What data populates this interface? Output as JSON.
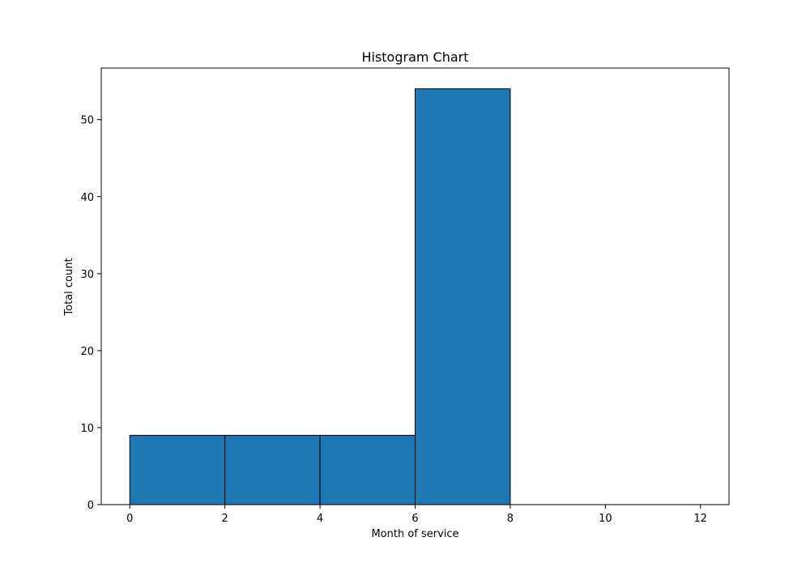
{
  "chart_data": {
    "type": "bar",
    "title": "Histogram Chart",
    "xlabel": "Month of service",
    "ylabel": "Total count",
    "bins": [
      {
        "x0": 0,
        "x1": 2,
        "count": 9
      },
      {
        "x0": 2,
        "x1": 4,
        "count": 9
      },
      {
        "x0": 4,
        "x1": 6,
        "count": 9
      },
      {
        "x0": 6,
        "x1": 8,
        "count": 54
      },
      {
        "x0": 8,
        "x1": 10,
        "count": 0
      },
      {
        "x0": 10,
        "x1": 12,
        "count": 0
      }
    ],
    "xlim": [
      -0.6,
      12.6
    ],
    "ylim": [
      0,
      56.7
    ],
    "xticks": [
      0,
      2,
      4,
      6,
      8,
      10,
      12
    ],
    "yticks": [
      0,
      10,
      20,
      30,
      40,
      50
    ],
    "bar_color": "#1f77b4",
    "edge_color": "#000000",
    "grid": false
  }
}
